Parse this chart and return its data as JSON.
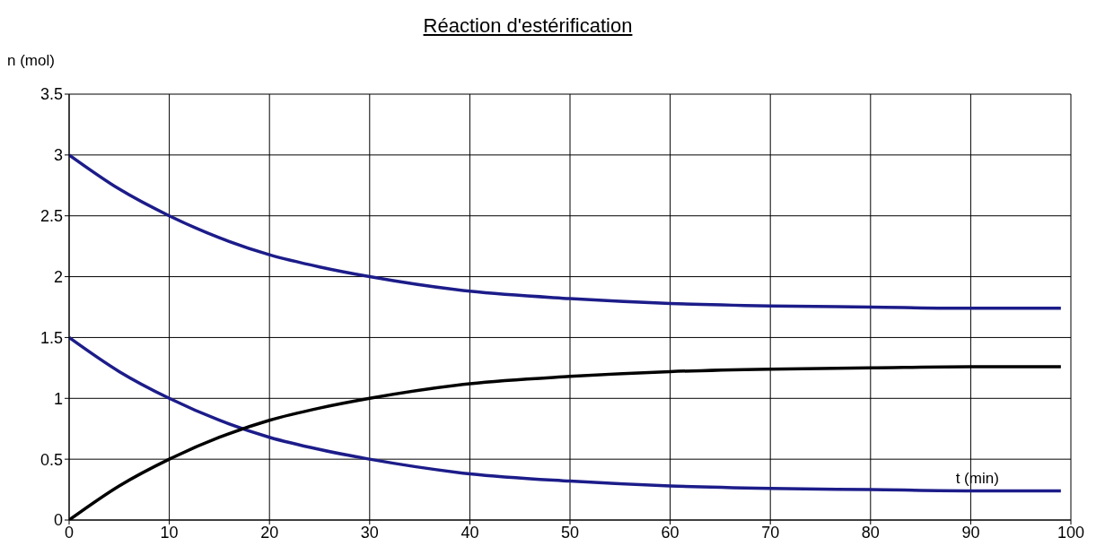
{
  "chart_data": {
    "type": "line",
    "title": "Réaction d'estérification",
    "xlabel": "t (min)",
    "ylabel": "n (mol)",
    "x": [
      0,
      5,
      10,
      15,
      20,
      25,
      30,
      40,
      50,
      60,
      70,
      80,
      90,
      99
    ],
    "series": [
      {
        "color": "#1c1c8a",
        "values": [
          3,
          2.72,
          2.5,
          2.32,
          2.18,
          2.08,
          2.0,
          1.88,
          1.82,
          1.78,
          1.76,
          1.75,
          1.74,
          1.74
        ]
      },
      {
        "color": "#1c1c8a",
        "values": [
          1.5,
          1.22,
          1.0,
          0.82,
          0.68,
          0.58,
          0.5,
          0.38,
          0.32,
          0.28,
          0.26,
          0.25,
          0.24,
          0.24
        ]
      },
      {
        "color": "#000000",
        "values": [
          0,
          0.28,
          0.5,
          0.68,
          0.82,
          0.92,
          1.0,
          1.12,
          1.18,
          1.22,
          1.24,
          1.25,
          1.26,
          1.26
        ]
      }
    ],
    "xlim": [
      0,
      100
    ],
    "xticks": [
      0,
      10,
      20,
      30,
      40,
      50,
      60,
      70,
      80,
      90,
      100
    ],
    "ylim": [
      0,
      3.5
    ],
    "yticks": [
      0,
      0.5,
      1,
      1.5,
      2,
      2.5,
      3,
      3.5
    ],
    "grid": true,
    "legend": false,
    "marker": "none",
    "line_style": "solid"
  }
}
